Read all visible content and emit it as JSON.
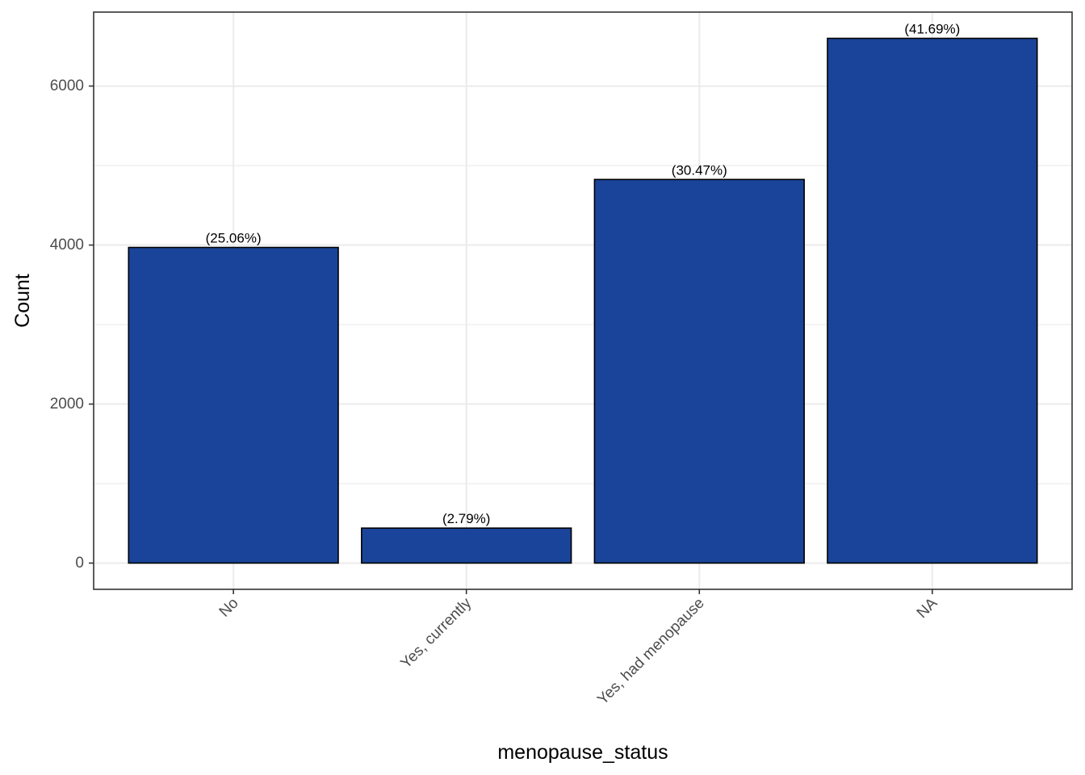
{
  "chart_data": {
    "type": "bar",
    "title": "",
    "xlabel": "menopause_status",
    "ylabel": "Count",
    "categories": [
      "No",
      "Yes, currently",
      "Yes, had menopause",
      "NA"
    ],
    "values": [
      3970,
      440,
      4825,
      6600
    ],
    "data_labels": [
      "(25.06%)",
      "(2.79%)",
      "(30.47%)",
      "(41.69%)"
    ],
    "ylim": [
      -330,
      6930
    ],
    "y_ticks": [
      0,
      2000,
      4000,
      6000
    ],
    "y_tick_labels": [
      "0",
      "2000",
      "4000",
      "6000"
    ],
    "grid": true,
    "legend": "none",
    "bar_color": "#1a4499",
    "bar_outline_color": "#000000",
    "panel_border_color": "#333333",
    "grid_color": "#ebebeb",
    "x_tick_label_rotation_deg": 45
  }
}
